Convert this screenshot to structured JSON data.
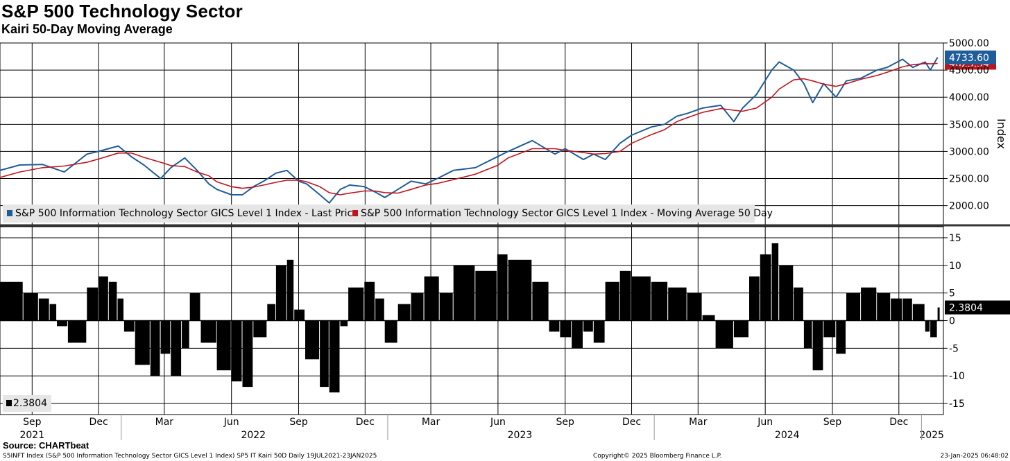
{
  "header": {
    "title": "S&P 500 Technology Sector",
    "subtitle": "Kairi 50-Day Moving Average"
  },
  "footer": {
    "source": "Source: CHARTbeat",
    "left": "S5INFT Index (S&P 500 Information Technology Sector GICS Level 1 Index) SP5 IT Kairi 50D  Daily 19JUL2021-23JAN2025",
    "middle": "Copyright© 2025 Bloomberg Finance L.P.",
    "right": "23-Jan-2025 06:48:02"
  },
  "colors": {
    "price": "#1f5c99",
    "ma": "#c0141c",
    "bars": "#000000",
    "grid": "#000000"
  },
  "chart_data": [
    {
      "type": "line",
      "panel": "price",
      "ylabel": "Index",
      "ylim": [
        1650,
        5000
      ],
      "yticks": [
        "5000.00",
        "4500.00",
        "4000.00",
        "3500.00",
        "3000.00",
        "2500.00",
        "2000.00"
      ],
      "ytick_values": [
        5000,
        4500,
        4000,
        3500,
        3000,
        2500,
        2000
      ],
      "legend": [
        {
          "name": "S&P 500 Information Technology Sector GICS Level 1 Index - Last Price",
          "color": "#1f5c99"
        },
        {
          "name": "S&P 500 Information Technology Sector GICS Level 1 Index - Moving Average 50 Day",
          "color": "#c0141c"
        }
      ],
      "last_values": {
        "price": "4733.60",
        "ma": "4623.54"
      },
      "grid": true,
      "legend_position": "bottom-left",
      "x": [
        "2021-07-19",
        "2021-08-15",
        "2021-09-15",
        "2021-10-15",
        "2021-11-15",
        "2021-12-01",
        "2021-12-28",
        "2022-01-15",
        "2022-02-01",
        "2022-02-24",
        "2022-03-10",
        "2022-03-29",
        "2022-04-15",
        "2022-05-01",
        "2022-05-12",
        "2022-06-01",
        "2022-06-16",
        "2022-07-01",
        "2022-07-15",
        "2022-08-01",
        "2022-08-16",
        "2022-09-01",
        "2022-09-12",
        "2022-09-30",
        "2022-10-13",
        "2022-10-28",
        "2022-11-10",
        "2022-11-30",
        "2022-12-15",
        "2022-12-28",
        "2023-01-15",
        "2023-02-02",
        "2023-02-22",
        "2023-03-10",
        "2023-04-01",
        "2023-05-01",
        "2023-05-31",
        "2023-06-15",
        "2023-07-18",
        "2023-08-18",
        "2023-09-01",
        "2023-09-26",
        "2023-10-10",
        "2023-10-26",
        "2023-11-15",
        "2023-12-01",
        "2023-12-28",
        "2024-01-15",
        "2024-02-01",
        "2024-02-15",
        "2024-03-07",
        "2024-04-01",
        "2024-04-19",
        "2024-05-01",
        "2024-05-20",
        "2024-06-10",
        "2024-06-20",
        "2024-07-10",
        "2024-07-24",
        "2024-08-05",
        "2024-08-20",
        "2024-09-06",
        "2024-09-20",
        "2024-10-10",
        "2024-11-01",
        "2024-11-15",
        "2024-12-06",
        "2024-12-20",
        "2025-01-06",
        "2025-01-13",
        "2025-01-23"
      ],
      "series": [
        {
          "name": "S&P 500 Information Technology Sector GICS Level 1 Index - Last Price",
          "values": [
            2650,
            2750,
            2760,
            2620,
            2950,
            3000,
            3100,
            2900,
            2750,
            2500,
            2700,
            2880,
            2650,
            2400,
            2300,
            2200,
            2200,
            2350,
            2450,
            2600,
            2650,
            2450,
            2400,
            2200,
            2050,
            2300,
            2380,
            2350,
            2250,
            2150,
            2300,
            2450,
            2400,
            2500,
            2650,
            2700,
            2900,
            3000,
            3200,
            2950,
            3050,
            2850,
            2950,
            2850,
            3150,
            3300,
            3450,
            3500,
            3650,
            3700,
            3800,
            3850,
            3550,
            3800,
            4050,
            4500,
            4650,
            4500,
            4250,
            3900,
            4250,
            4000,
            4300,
            4350,
            4500,
            4550,
            4700,
            4550,
            4650,
            4500,
            4733.6
          ]
        },
        {
          "name": "S&P 500 Information Technology Sector GICS Level 1 Index - Moving Average 50 Day",
          "values": [
            2520,
            2620,
            2700,
            2730,
            2800,
            2860,
            2970,
            2970,
            2890,
            2800,
            2740,
            2720,
            2620,
            2550,
            2440,
            2350,
            2320,
            2340,
            2380,
            2430,
            2470,
            2470,
            2440,
            2350,
            2240,
            2200,
            2230,
            2270,
            2270,
            2240,
            2230,
            2300,
            2380,
            2410,
            2480,
            2580,
            2740,
            2880,
            3050,
            3050,
            3020,
            2980,
            2950,
            2960,
            3000,
            3150,
            3310,
            3400,
            3550,
            3620,
            3720,
            3790,
            3760,
            3740,
            3800,
            4000,
            4150,
            4320,
            4340,
            4300,
            4240,
            4200,
            4250,
            4330,
            4400,
            4460,
            4560,
            4600,
            4620,
            4615,
            4623.54
          ]
        }
      ]
    },
    {
      "type": "bar",
      "panel": "kairi",
      "ylim": [
        -17,
        17
      ],
      "yticks": [
        "15",
        "10",
        "5",
        "0",
        "-5",
        "-10",
        "-15"
      ],
      "ytick_values": [
        15,
        10,
        5,
        0,
        -5,
        -10,
        -15
      ],
      "last_value": "2.3804",
      "legend_label": "2.3804",
      "grid": true,
      "legend_position": "bottom-left",
      "x": [
        "2021-07-19",
        "2021-08-20",
        "2021-09-10",
        "2021-09-25",
        "2021-10-05",
        "2021-10-20",
        "2021-11-15",
        "2021-12-01",
        "2021-12-15",
        "2021-12-27",
        "2022-01-05",
        "2022-01-20",
        "2022-02-10",
        "2022-02-24",
        "2022-03-10",
        "2022-03-25",
        "2022-04-05",
        "2022-04-20",
        "2022-05-12",
        "2022-06-01",
        "2022-06-16",
        "2022-07-01",
        "2022-07-20",
        "2022-08-01",
        "2022-08-16",
        "2022-08-26",
        "2022-09-10",
        "2022-09-30",
        "2022-10-13",
        "2022-10-28",
        "2022-11-08",
        "2022-11-30",
        "2022-12-15",
        "2022-12-28",
        "2023-01-15",
        "2023-02-02",
        "2023-02-20",
        "2023-03-13",
        "2023-04-01",
        "2023-05-01",
        "2023-05-31",
        "2023-06-15",
        "2023-07-18",
        "2023-08-10",
        "2023-08-25",
        "2023-09-10",
        "2023-09-26",
        "2023-10-10",
        "2023-10-26",
        "2023-11-15",
        "2023-12-01",
        "2023-12-28",
        "2024-01-20",
        "2024-02-15",
        "2024-03-07",
        "2024-03-25",
        "2024-04-19",
        "2024-05-10",
        "2024-05-25",
        "2024-06-10",
        "2024-06-20",
        "2024-07-10",
        "2024-07-24",
        "2024-08-05",
        "2024-08-20",
        "2024-09-06",
        "2024-09-20",
        "2024-10-10",
        "2024-11-01",
        "2024-11-20",
        "2024-12-06",
        "2024-12-20",
        "2025-01-06",
        "2025-01-13",
        "2025-01-23"
      ],
      "values": [
        7,
        5,
        4,
        3,
        -1,
        -4,
        6,
        8,
        7,
        4,
        -2,
        -8,
        -10,
        -6,
        -10,
        -5,
        5,
        -4,
        -9,
        -11,
        -12,
        -3,
        3,
        10,
        11,
        2,
        -7,
        -12,
        -13,
        -1,
        6,
        7,
        4,
        -4,
        3,
        5,
        8,
        5,
        10,
        9,
        12,
        11,
        7,
        -2,
        -3,
        -5,
        -2,
        -4,
        7,
        9,
        8,
        7,
        6,
        5,
        1,
        -5,
        -3,
        8,
        12,
        14,
        10,
        6,
        -5,
        -9,
        -3,
        -6,
        5,
        6,
        5,
        4,
        4,
        3,
        -2,
        -3,
        2.3804
      ]
    }
  ],
  "x_axis": {
    "months": [
      {
        "label": "Sep",
        "date": "2021-09-01"
      },
      {
        "label": "Dec",
        "date": "2021-12-01"
      },
      {
        "label": "Mar",
        "date": "2022-03-01"
      },
      {
        "label": "Jun",
        "date": "2022-06-01"
      },
      {
        "label": "Sep",
        "date": "2022-09-01"
      },
      {
        "label": "Dec",
        "date": "2022-12-01"
      },
      {
        "label": "Mar",
        "date": "2023-03-01"
      },
      {
        "label": "Jun",
        "date": "2023-06-01"
      },
      {
        "label": "Sep",
        "date": "2023-09-01"
      },
      {
        "label": "Dec",
        "date": "2023-12-01"
      },
      {
        "label": "Mar",
        "date": "2024-03-01"
      },
      {
        "label": "Jun",
        "date": "2024-06-01"
      },
      {
        "label": "Sep",
        "date": "2024-09-01"
      },
      {
        "label": "Dec",
        "date": "2024-12-01"
      }
    ],
    "years": [
      {
        "label": "2021",
        "date": "2021-09-01"
      },
      {
        "label": "2022",
        "date": "2022-07-01"
      },
      {
        "label": "2023",
        "date": "2023-07-01"
      },
      {
        "label": "2024",
        "date": "2024-07-01"
      },
      {
        "label": "2025",
        "date": "2025-01-15"
      }
    ],
    "year_boundaries": [
      "2022-01-01",
      "2023-01-01",
      "2024-01-01",
      "2025-01-01"
    ],
    "range": [
      "2021-07-19",
      "2025-01-31"
    ]
  }
}
